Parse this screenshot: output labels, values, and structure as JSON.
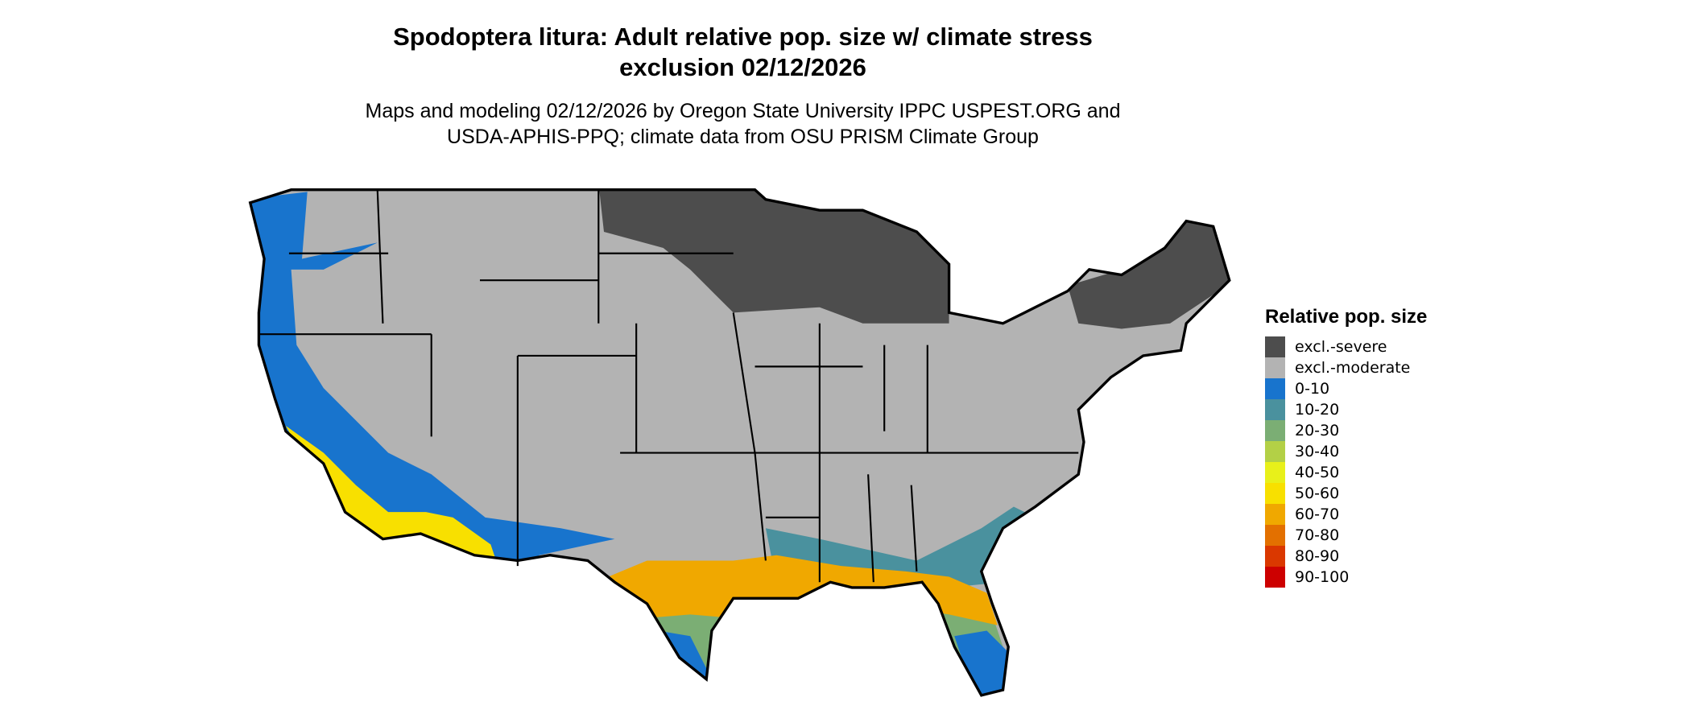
{
  "title_line1": "Spodoptera litura: Adult relative pop. size w/ climate stress",
  "title_line2": "exclusion 02/12/2026",
  "subtitle_line1": "Maps and modeling 02/12/2026 by Oregon State University IPPC USPEST.ORG and",
  "subtitle_line2": "USDA-APHIS-PPQ; climate data from OSU PRISM Climate Group",
  "legend": {
    "title": "Relative pop. size",
    "items": [
      {
        "label": "excl.-severe",
        "color": "#4d4d4d"
      },
      {
        "label": "excl.-moderate",
        "color": "#b3b3b3"
      },
      {
        "label": "0-10",
        "color": "#1874cd"
      },
      {
        "label": "10-20",
        "color": "#4a919e"
      },
      {
        "label": "20-30",
        "color": "#7bae74"
      },
      {
        "label": "30-40",
        "color": "#b3d046"
      },
      {
        "label": "40-50",
        "color": "#e8f01a"
      },
      {
        "label": "50-60",
        "color": "#f8e000"
      },
      {
        "label": "60-70",
        "color": "#f0a800"
      },
      {
        "label": "70-80",
        "color": "#e37000"
      },
      {
        "label": "80-90",
        "color": "#da3800"
      },
      {
        "label": "90-100",
        "color": "#cd0000"
      }
    ]
  },
  "map": {
    "region": "Contiguous United States",
    "border_color": "#000000"
  }
}
